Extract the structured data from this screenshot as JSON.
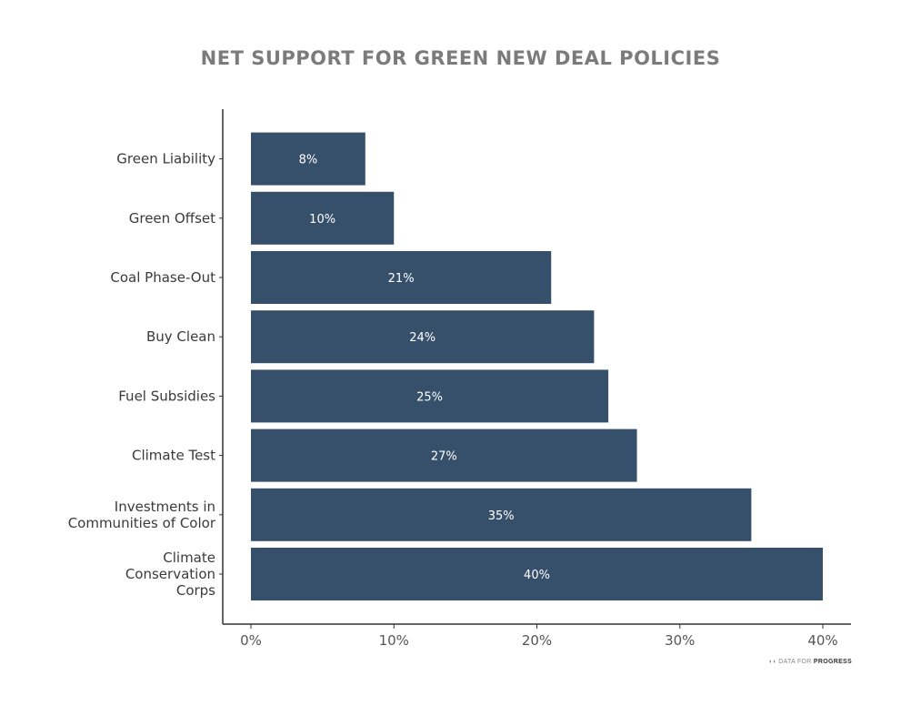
{
  "chart_data": {
    "type": "bar",
    "orientation": "horizontal",
    "title": "NET SUPPORT FOR GREEN NEW DEAL POLICIES",
    "categories": [
      [
        "Green Liability"
      ],
      [
        "Green Offset"
      ],
      [
        "Coal Phase-Out"
      ],
      [
        "Buy Clean"
      ],
      [
        "Fuel Subsidies"
      ],
      [
        "Climate Test"
      ],
      [
        "Investments in",
        "Communities of Color"
      ],
      [
        "Climate",
        "Conservation",
        "Corps"
      ]
    ],
    "values": [
      8,
      10,
      21,
      24,
      25,
      27,
      35,
      40
    ],
    "data_labels": [
      "8%",
      "10%",
      "21%",
      "24%",
      "25%",
      "27%",
      "35%",
      "40%"
    ],
    "xlim": [
      0,
      40
    ],
    "xticks": [
      0,
      10,
      20,
      30,
      40
    ],
    "xtick_labels": [
      "0%",
      "10%",
      "20%",
      "30%",
      "40%"
    ],
    "xlabel": "",
    "ylabel": "",
    "grid": false,
    "bar_color": "#364f6b",
    "title_color": "#7b7b7b"
  },
  "source": {
    "prefix": "DATA FOR",
    "brand": "PROGRESS"
  }
}
